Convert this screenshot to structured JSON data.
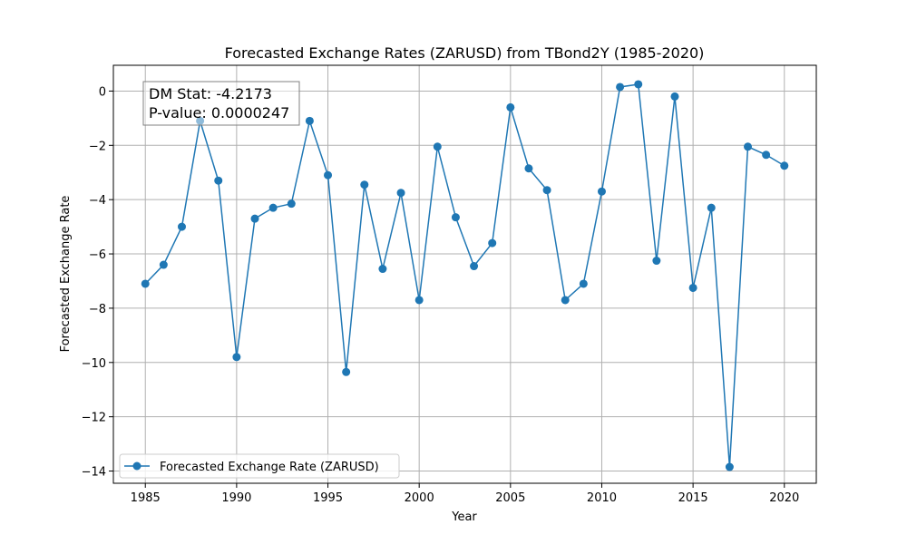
{
  "chart_data": {
    "type": "line",
    "title": "Forecasted Exchange Rates (ZARUSD) from TBond2Y (1985-2020)",
    "xlabel": "Year",
    "ylabel": "Forecasted Exchange Rate",
    "xlim": [
      1983.25,
      2021.75
    ],
    "ylim": [
      -14.45,
      0.95
    ],
    "x_ticks": [
      1985,
      1990,
      1995,
      2000,
      2005,
      2010,
      2015,
      2020
    ],
    "y_ticks": [
      0,
      -2,
      -4,
      -6,
      -8,
      -10,
      -12,
      -14
    ],
    "grid": true,
    "legend_position": "lower-left",
    "series": [
      {
        "name": "Forecasted Exchange Rate (ZARUSD)",
        "color": "#1f77b4",
        "marker": "circle",
        "x": [
          1985,
          1986,
          1987,
          1988,
          1989,
          1990,
          1991,
          1992,
          1993,
          1994,
          1995,
          1996,
          1997,
          1998,
          1999,
          2000,
          2001,
          2002,
          2003,
          2004,
          2005,
          2006,
          2007,
          2008,
          2009,
          2010,
          2011,
          2012,
          2013,
          2014,
          2015,
          2016,
          2017,
          2018,
          2019,
          2020
        ],
        "values": [
          -7.1,
          -6.4,
          -5.0,
          -1.1,
          -3.3,
          -9.8,
          -4.7,
          -4.3,
          -4.15,
          -1.1,
          -3.1,
          -10.35,
          -3.45,
          -6.55,
          -3.75,
          -7.7,
          -2.05,
          -4.65,
          -6.45,
          -5.6,
          -0.6,
          -2.85,
          -3.65,
          -7.7,
          -7.1,
          -3.7,
          0.15,
          0.25,
          -6.25,
          -0.2,
          -7.25,
          -4.3,
          -13.85,
          -2.05,
          -2.35,
          -2.75
        ]
      }
    ],
    "annotation": {
      "line1": "DM Stat: -4.2173",
      "line2": "P-value: 0.0000247"
    }
  }
}
